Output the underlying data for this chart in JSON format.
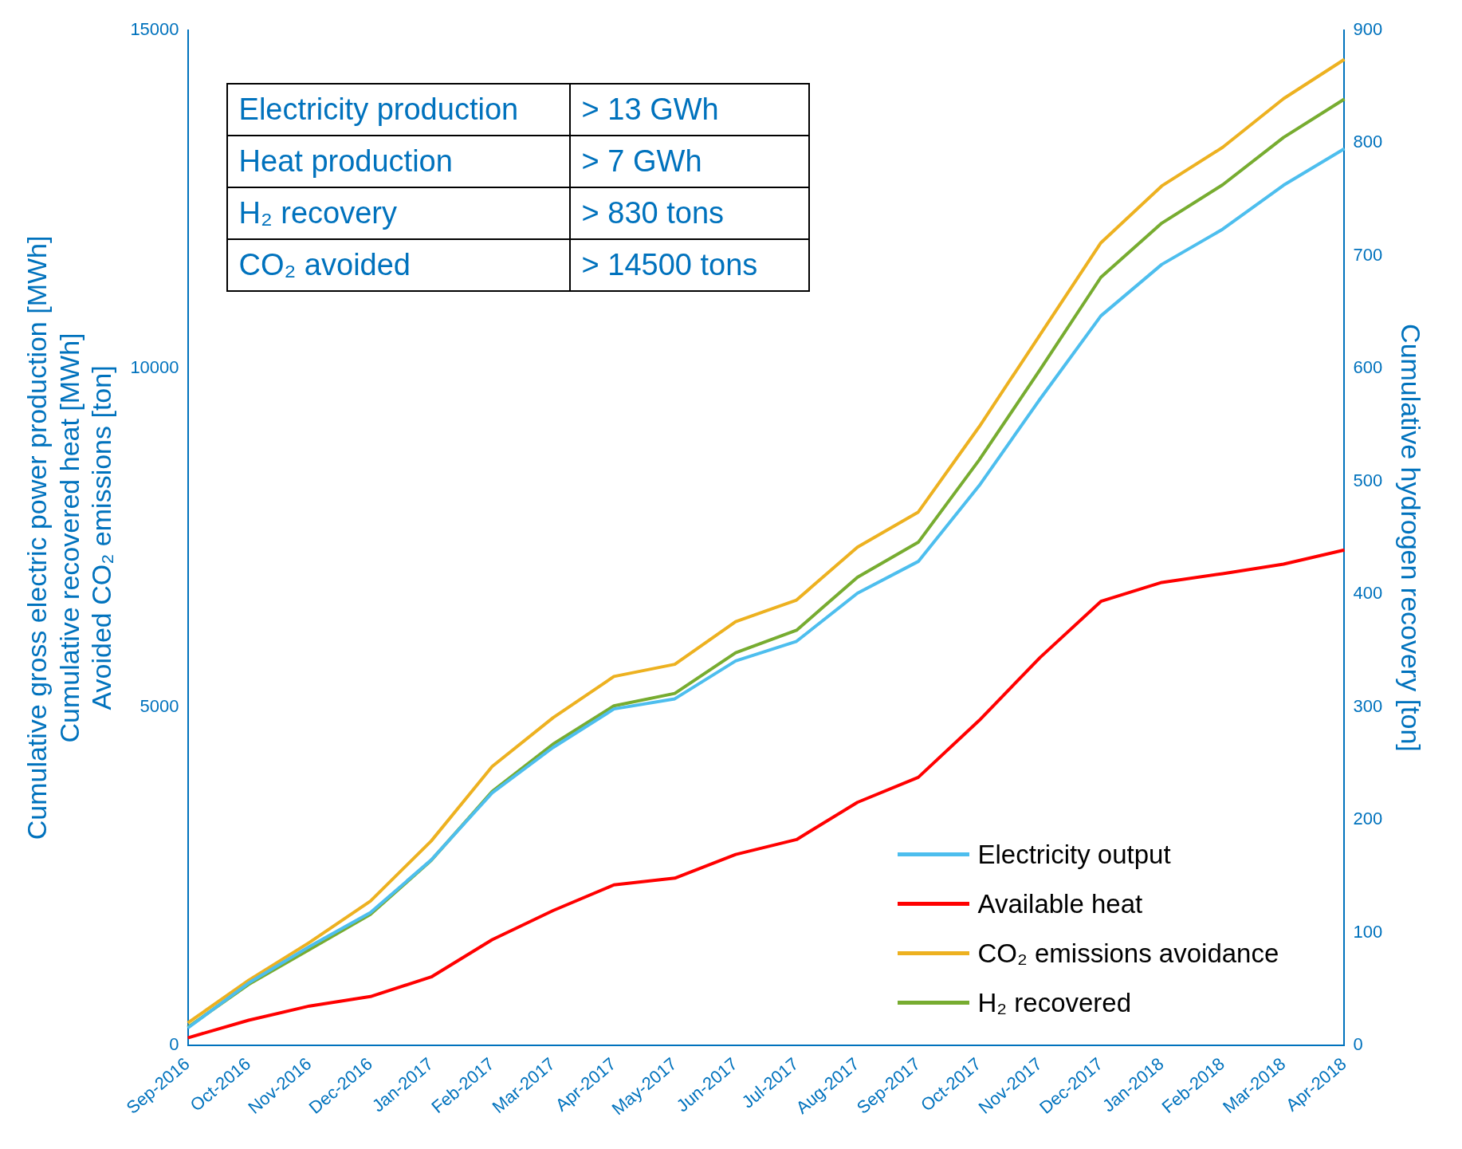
{
  "chart_data": {
    "type": "line",
    "categories": [
      "Sep-2016",
      "Oct-2016",
      "Nov-2016",
      "Dec-2016",
      "Jan-2017",
      "Feb-2017",
      "Mar-2017",
      "Apr-2017",
      "May-2017",
      "Jun-2017",
      "Jul-2017",
      "Aug-2017",
      "Sep-2017",
      "Oct-2017",
      "Nov-2017",
      "Dec-2017",
      "Jan-2018",
      "Feb-2018",
      "Mar-2018",
      "Apr-2018"
    ],
    "ylabel": "Cumulative gross electric power production [MWh]\nCumulative recovered heat [MWh]\nAvoided CO₂ emissions [ton]",
    "y2label": "Cumulative hydrogen recovery [ton]",
    "ylim": [
      0,
      15000
    ],
    "yticks": [
      0,
      5000,
      10000,
      15000
    ],
    "y2lim": [
      0,
      900
    ],
    "y2ticks": [
      0,
      100,
      200,
      300,
      400,
      500,
      600,
      700,
      800,
      900
    ],
    "legend": "bottom right",
    "grid": false,
    "annotations": [
      "Electricity production",
      "> 13 GWh",
      "Heat production",
      "> 7 GWh",
      "H₂ recovery",
      "> 830 tons",
      "CO₂ avoided",
      "> 14500 tons"
    ],
    "series": [
      {
        "name": "Electricity output",
        "color": "#4dbeee",
        "values": [
          255,
          920,
          1460,
          1960,
          2740,
          3730,
          4400,
          4970,
          5120,
          5680,
          5970,
          6680,
          7150,
          8270,
          9550,
          10780,
          11540,
          12060,
          12710,
          13250
        ]
      },
      {
        "name": "Available heat",
        "color": "#ff0000",
        "values": [
          110,
          370,
          580,
          720,
          1010,
          1560,
          1990,
          2370,
          2470,
          2820,
          3040,
          3590,
          3960,
          4800,
          5730,
          6560,
          6840,
          6970,
          7110,
          7320
        ]
      },
      {
        "name": "CO₂ emissions avoidance",
        "color": "#edb120",
        "values": [
          330,
          960,
          1520,
          2130,
          3020,
          4120,
          4840,
          5450,
          5630,
          6260,
          6580,
          7360,
          7880,
          9140,
          10500,
          11860,
          12700,
          13270,
          13990,
          14570
        ]
      },
      {
        "name": "H₂ recovered",
        "color": "#77ac30",
        "axis": "y2",
        "values": [
          16,
          54,
          85,
          116,
          164,
          225,
          267,
          301,
          312,
          348,
          368,
          415,
          446,
          519,
          599,
          681,
          729,
          763,
          805,
          839
        ]
      }
    ]
  }
}
